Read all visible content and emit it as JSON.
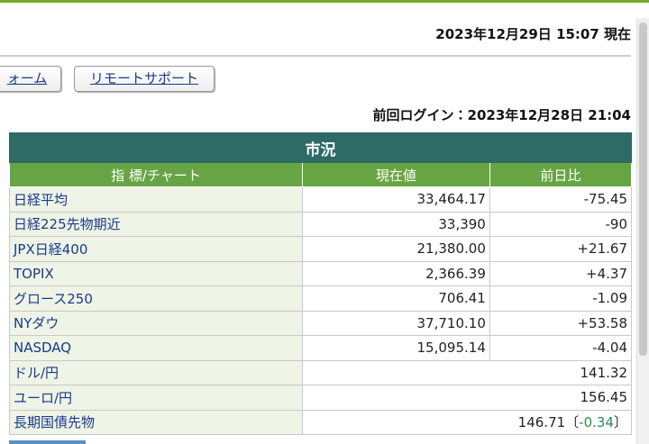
{
  "header": {
    "datetime": "2023年12月29日 15:07 現在"
  },
  "tabs": [
    "ォーム",
    "リモートサポート"
  ],
  "last_login": "前回ログイン：2023年12月28日 21:04",
  "table": {
    "title": "市況",
    "columns": [
      "指 標/チャート",
      "現在値",
      "前日比"
    ],
    "rows": [
      [
        "日経平均",
        "33,464.17",
        "-75.45"
      ],
      [
        "日経225先物期近",
        "33,390",
        "-90"
      ],
      [
        "JPX日経400",
        "21,380.00",
        "+21.67"
      ],
      [
        "TOPIX",
        "2,366.39",
        "+4.37"
      ],
      [
        "グロース250",
        "706.41",
        "-1.09"
      ],
      [
        "NYダウ",
        "37,710.10",
        "+53.58"
      ],
      [
        "NASDAQ",
        "15,095.14",
        "-4.04"
      ],
      [
        "ドル/円",
        "141.32"
      ],
      [
        "ユーロ/円",
        "156.45"
      ],
      [
        "長期国債先物",
        [
          "146.71〔",
          "-0.34",
          "〕"
        ]
      ]
    ]
  }
}
